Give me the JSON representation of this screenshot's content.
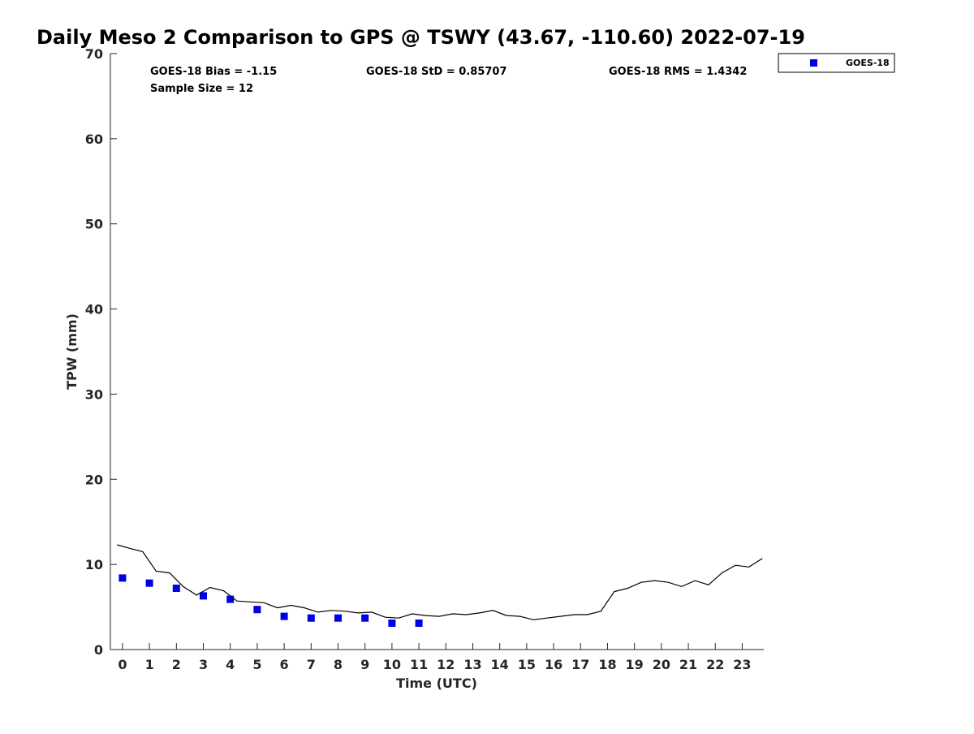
{
  "chart_data": {
    "type": "scatter",
    "title": "Daily Meso 2 Comparison to GPS @ TSWY (43.67, -110.60) 2022-07-19",
    "xlabel": "Time (UTC)",
    "ylabel": "TPW (mm)",
    "xlim": [
      -0.45,
      23.8
    ],
    "ylim": [
      0,
      70
    ],
    "x_ticks": [
      0,
      1,
      2,
      3,
      4,
      5,
      6,
      7,
      8,
      9,
      10,
      11,
      12,
      13,
      14,
      15,
      16,
      17,
      18,
      19,
      20,
      21,
      22,
      23
    ],
    "x_tick_labels": [
      "0",
      "1",
      "2",
      "3",
      "4",
      "5",
      "6",
      "7",
      "8",
      "9",
      "10",
      "11",
      "12",
      "13",
      "14",
      "15",
      "16",
      "17",
      "18",
      "19",
      "20",
      "21",
      "22",
      "23"
    ],
    "y_ticks": [
      0,
      10,
      20,
      30,
      40,
      50,
      60,
      70
    ],
    "y_tick_labels": [
      "0",
      "10",
      "20",
      "30",
      "40",
      "50",
      "60",
      "70"
    ],
    "grid": false,
    "legend_position": "outside-top-right",
    "stats": {
      "bias": "GOES-18 Bias = -1.15",
      "std": "GOES-18 StD = 0.85707",
      "rms": "GOES-18 RMS = 1.4342",
      "sample_size": "Sample Size = 12"
    },
    "series": [
      {
        "name": "GOES-18",
        "type": "scatter",
        "marker": "square",
        "color": "#0000e6",
        "x": [
          0,
          1,
          2,
          3,
          4,
          5,
          6,
          7,
          8,
          9,
          10,
          11
        ],
        "y": [
          8.4,
          7.8,
          7.2,
          6.3,
          5.9,
          4.7,
          3.9,
          3.7,
          3.7,
          3.7,
          3.1,
          3.1
        ]
      },
      {
        "type": "line",
        "color": "#000000",
        "x": [
          -0.2,
          0.25,
          0.75,
          1.25,
          1.75,
          2.25,
          2.75,
          3.25,
          3.75,
          4.25,
          4.75,
          5.25,
          5.75,
          6.25,
          6.75,
          7.25,
          7.75,
          8.25,
          8.75,
          9.25,
          9.75,
          10.25,
          10.75,
          11.25,
          11.75,
          12.25,
          12.75,
          13.25,
          13.75,
          14.25,
          14.75,
          15.25,
          15.75,
          16.25,
          16.75,
          17.25,
          17.75,
          18.25,
          18.75,
          19.25,
          19.75,
          20.25,
          20.75,
          21.25,
          21.75,
          22.25,
          22.75,
          23.25,
          23.75
        ],
        "y": [
          12.3,
          11.9,
          11.5,
          9.2,
          9.0,
          7.4,
          6.4,
          7.3,
          6.9,
          5.7,
          5.6,
          5.5,
          4.9,
          5.2,
          4.9,
          4.4,
          4.6,
          4.5,
          4.3,
          4.4,
          3.8,
          3.7,
          4.2,
          4.0,
          3.9,
          4.2,
          4.1,
          4.3,
          4.6,
          4.0,
          3.9,
          3.5,
          3.7,
          3.9,
          4.1,
          4.1,
          4.5,
          6.8,
          7.2,
          7.9,
          8.1,
          7.9,
          7.4,
          8.1,
          7.6,
          9.0,
          9.9,
          9.7,
          10.7
        ]
      }
    ]
  },
  "legend": {
    "entries": [
      {
        "label": "GOES-18",
        "color": "#0000e6",
        "marker": "square"
      }
    ]
  }
}
